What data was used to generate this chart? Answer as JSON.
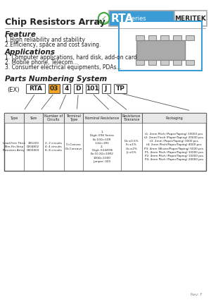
{
  "title": "Chip Resistors Array",
  "series_name": "RTA",
  "series_suffix": "Series",
  "brand": "MERITEK",
  "feature_title": "Feature",
  "feature_items": [
    "1.High reliability and stability",
    "2.Efficiency, space and cost saving."
  ],
  "applications_title": "Applications",
  "applications_items": [
    "1. Computer applications, hard disk, add-on card",
    "2. Mobile phone, Telecom...",
    "3. Consumer electrical equipments, PDAs..."
  ],
  "parts_title": "Parts Numbering System",
  "parts_ex": "(EX)",
  "parts_codes": [
    "RTA",
    "03",
    "4",
    "D",
    "101",
    "J",
    "TP"
  ],
  "table_headers": [
    "Type",
    "Size",
    "Number of\nCircuits",
    "Terminal\nType",
    "Nominal Resistance",
    "Resistance\nTolerance",
    "Packaging"
  ],
  "type_col": [
    "Lead-Free Thick\nFilm-Fin-Strip\nResistors Array"
  ],
  "size_col": [
    "0402\n0402\n0603"
  ],
  "circuits_col": [
    "2: 2 circuits\n4: 4 circuits\n8: 8 circuits"
  ],
  "terminal_col": [
    "C=Convex\nD=Concave"
  ],
  "nominal_col": [
    "1-Digit: E96 Series\nEx:10Ω=10R\n1.1Ω=1R1\n2-Digit: E24/E96 Series\nEx:10.2Ω=+10R2\n100Ω=1000\nJumper: 000"
  ],
  "tolerance_col": [
    "D=±0.5%\nF=±1%\nG=±2%\nJ=±5%"
  ],
  "packaging_col": [
    "t1: 2mm Pitch (Paper/Taping) 10000 pcs\nt2: 2mm/7inch (Paper/Taping) 20000 pcs\nt3: 2mm (Paper/Taping) 3000 pcs\nt4: 2mm Pitch(Paper/Taping) 4000 pcs\nP3: 4mm (Blister/Paper/Taping) 5000 pcs\nP1: 4mm Pitch (Paper/Taping) 10000 pcs\nP2: 4mm Pitch (Paper/Taping) 15000 pcs\nP4: 4mm Pitch (Paper/Taping) 20000 pcs"
  ],
  "bg_color": "#ffffff",
  "header_blue": "#3a9bd5",
  "border_color": "#3a9bd5",
  "code_orange": "#f5a623",
  "text_dark": "#222222",
  "table_border": "#555555"
}
